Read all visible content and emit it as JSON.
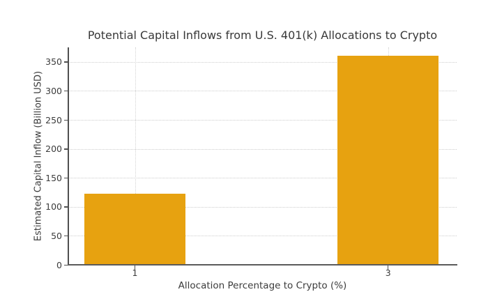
{
  "chart_data": {
    "type": "bar",
    "title": "Potential Capital Inflows from U.S. 401(k) Allocations to Crypto",
    "xlabel": "Allocation Percentage to Crypto (%)",
    "ylabel": "Estimated Capital Inflow (Billion USD)",
    "categories": [
      "1",
      "3"
    ],
    "values": [
      122.5,
      360
    ],
    "yticks": [
      0,
      50,
      100,
      150,
      200,
      250,
      300,
      350
    ],
    "ylim": [
      0,
      375
    ],
    "bar_color": "#E7A210",
    "grid": "dotted light-gray horizontal lines at each y tick and vertical lines at category centers",
    "legend": "none",
    "background_color": "#FFFFFF",
    "text_color": "#3B3B3B"
  }
}
